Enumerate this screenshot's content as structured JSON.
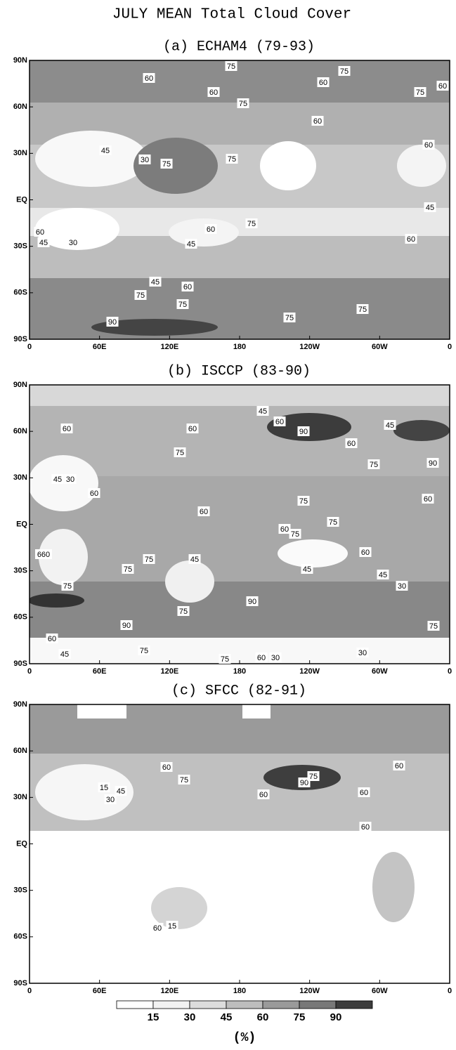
{
  "title": "JULY MEAN Total Cloud Cover",
  "x_ticks": [
    "0",
    "60E",
    "120E",
    "180",
    "120W",
    "60W",
    "0"
  ],
  "y_ticks": [
    "90N",
    "60N",
    "30N",
    "EQ",
    "30S",
    "60S",
    "90S"
  ],
  "panels": [
    {
      "title": "(a) ECHAM4 (79-93)",
      "contour_labels": [
        "60",
        "75",
        "75",
        "60",
        "75",
        "60",
        "60",
        "75",
        "45",
        "30",
        "60",
        "60",
        "75",
        "75",
        "45",
        "75",
        "60",
        "45",
        "60",
        "45",
        "60",
        "75",
        "75",
        "75",
        "90",
        "75",
        "60",
        "45",
        "30"
      ]
    },
    {
      "title": "(b) ISCCP (83-90)",
      "contour_labels": [
        "45",
        "60",
        "60",
        "90",
        "60",
        "45",
        "60",
        "75",
        "90",
        "75",
        "45",
        "30",
        "60",
        "60",
        "60",
        "75",
        "75",
        "60",
        "75",
        "60",
        "45",
        "45",
        "660",
        "75",
        "45",
        "75",
        "30",
        "75",
        "75",
        "90",
        "90",
        "75",
        "60",
        "45",
        "75",
        "75",
        "60",
        "30",
        "30"
      ]
    },
    {
      "title": "(c) SFCC (82-91)",
      "contour_labels": [
        "90",
        "60",
        "60",
        "75",
        "75",
        "60",
        "60",
        "45",
        "15",
        "30",
        "60",
        "60",
        "15"
      ]
    }
  ],
  "colorbar": {
    "ticks": [
      15,
      30,
      45,
      60,
      75,
      90
    ],
    "unit": "(%)",
    "colors": [
      "#ffffff",
      "#f2f2f2",
      "#dcdcdc",
      "#bdbdbd",
      "#9a9a9a",
      "#787878",
      "#3c3c3c"
    ]
  }
}
